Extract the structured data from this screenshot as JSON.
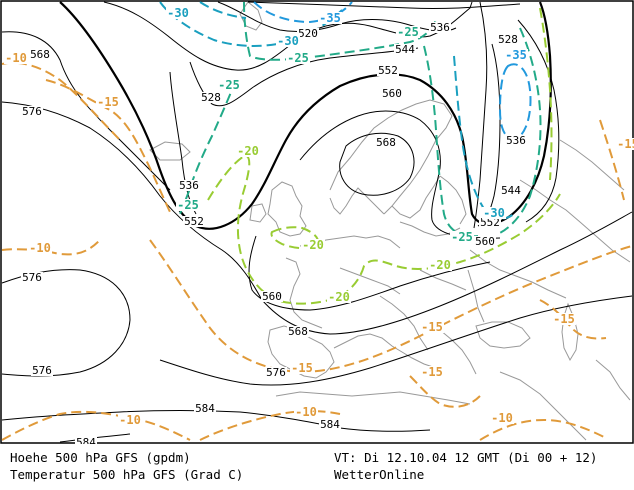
{
  "map": {
    "colors": {
      "height_contour": "#000000",
      "coast": "#999999",
      "temp_minus10": "#e09a3a",
      "temp_minus15": "#e09a3a",
      "temp_minus20": "#99cc33",
      "temp_minus25": "#22aa88",
      "temp_minus30": "#1a9fbf",
      "temp_minus35": "#2299dd"
    },
    "height_labels": [
      "568",
      "576",
      "576",
      "576",
      "520",
      "528",
      "536",
      "544",
      "552",
      "560",
      "568",
      "528",
      "536",
      "544",
      "552",
      "552",
      "560",
      "560",
      "568",
      "576",
      "584",
      "584",
      "584",
      "536"
    ],
    "temperature_labels": [
      "-10",
      "-10",
      "-10",
      "-10",
      "-10",
      "-15",
      "-15",
      "-15",
      "-15",
      "-15",
      "-15",
      "-20",
      "-20",
      "-20",
      "-20",
      "-25",
      "-25",
      "-25",
      "-25",
      "-25",
      "-30",
      "-30",
      "-30",
      "-35",
      "-35"
    ]
  },
  "footer": {
    "line1_left": "Hoehe 500 hPa GFS (gpdm)",
    "line2_left": "Temperatur 500 hPa GFS (Grad C)",
    "line1_right": "VT: Di 12.10.04 12 GMT (Di 00 + 12)",
    "line2_right": "WetterOnline"
  }
}
